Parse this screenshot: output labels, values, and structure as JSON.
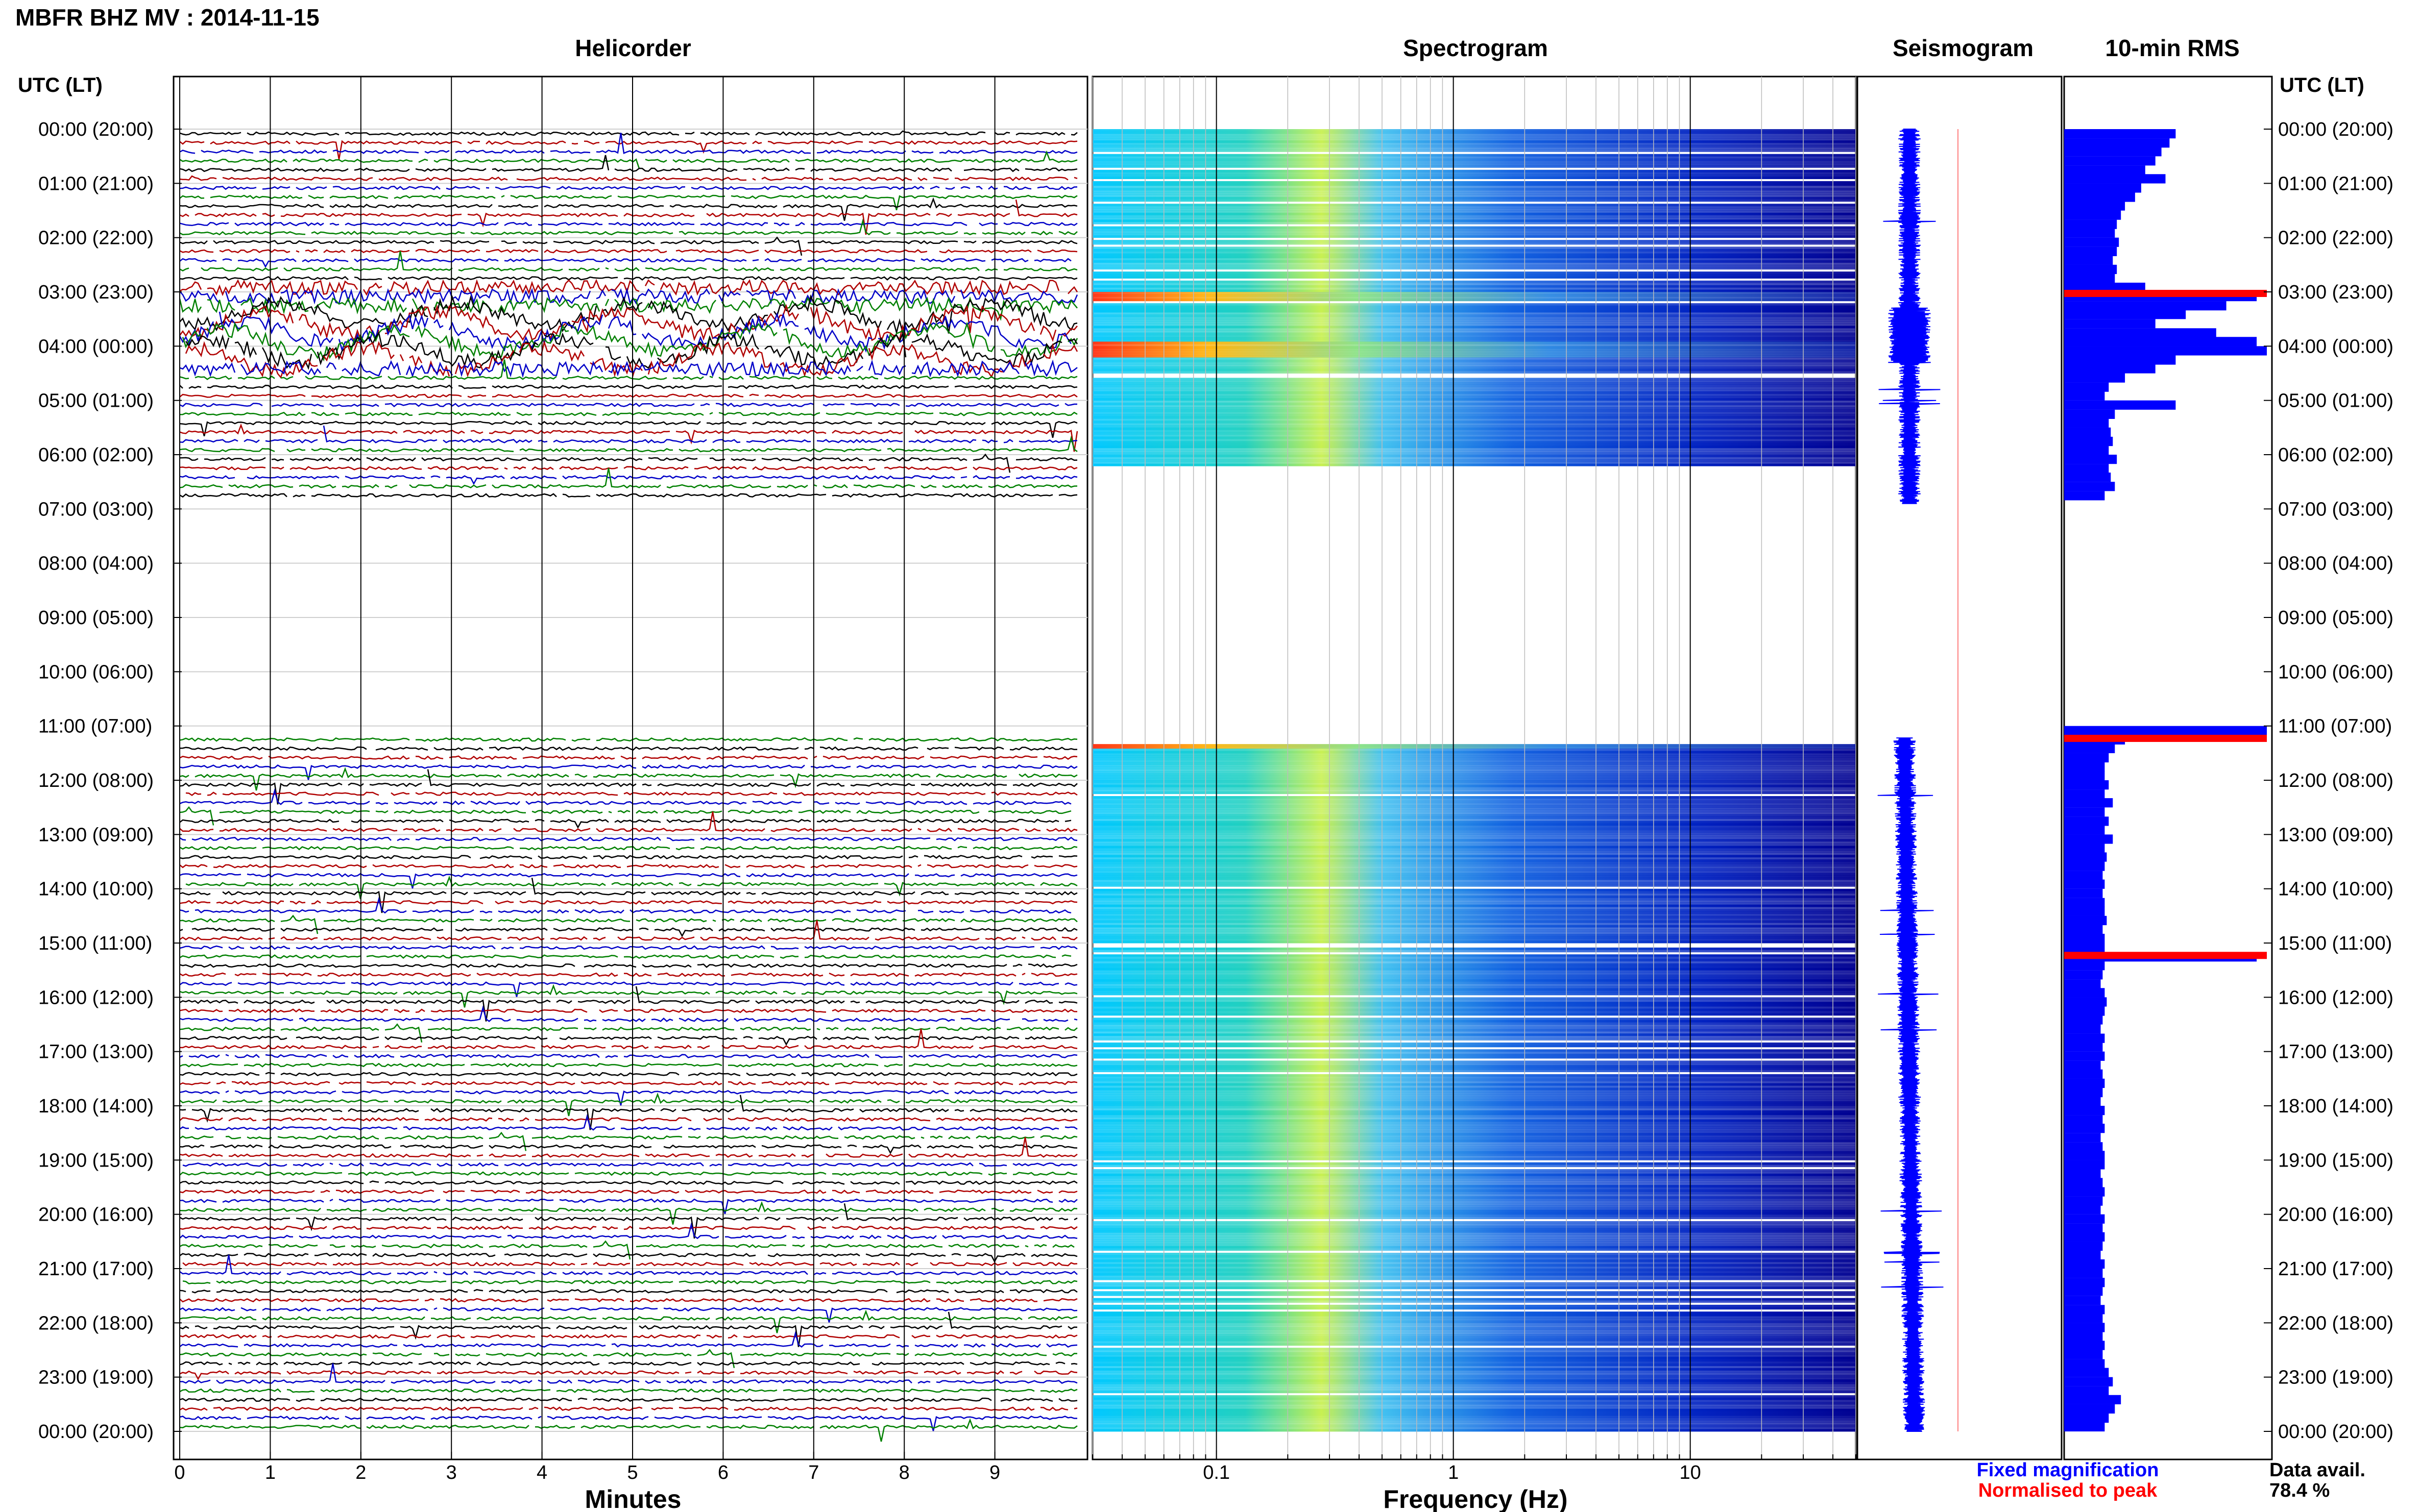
{
  "header": {
    "title": "MBFR BHZ MV : 2014-11-15",
    "helicorder_title": "Helicorder",
    "spectrogram_title": "Spectrogram",
    "seismogram_title": "Seismogram",
    "rms_title": "10-min RMS",
    "left_axis_title": "UTC (LT)",
    "right_axis_title": "UTC (LT)"
  },
  "footer": {
    "helicorder_xlabel": "Minutes",
    "spectrogram_xlabel": "Frequency (Hz)",
    "legend_fixed": "Fixed magnification",
    "legend_normalised": "Normalised to peak",
    "data_avail_label": "Data avail.",
    "data_avail_value": "78.4 %"
  },
  "colors": {
    "trace_black": "#000000",
    "trace_red": "#b00000",
    "trace_blue": "#0000c8",
    "trace_green": "#008000",
    "rms_fixed": "#0000ff",
    "rms_normalised": "#ff0000",
    "spectrogram_low": "#00008f",
    "spectrogram_high": "#ff0000"
  },
  "chart_data": [
    {
      "type": "line",
      "name": "helicorder",
      "xlabel": "Minutes",
      "xlim": [
        0,
        10
      ],
      "x_ticks": [
        "0",
        "1",
        "2",
        "3",
        "4",
        "5",
        "6",
        "7",
        "8",
        "9"
      ],
      "y_ticks": [
        "00:00 (20:00)",
        "01:00 (21:00)",
        "02:00 (22:00)",
        "03:00 (23:00)",
        "04:00 (00:00)",
        "05:00 (01:00)",
        "06:00 (02:00)",
        "07:00 (03:00)",
        "08:00 (04:00)",
        "09:00 (05:00)",
        "10:00 (06:00)",
        "11:00 (07:00)",
        "12:00 (08:00)",
        "13:00 (09:00)",
        "14:00 (10:00)",
        "15:00 (11:00)",
        "16:00 (12:00)",
        "17:00 (13:00)",
        "18:00 (14:00)",
        "19:00 (15:00)",
        "20:00 (16:00)",
        "21:00 (17:00)",
        "22:00 (18:00)",
        "23:00 (19:00)",
        "00:00 (20:00)"
      ],
      "rows_per_hour": 6,
      "data_gaps_hours": [
        [
          6.8,
          11.0
        ]
      ],
      "trace_colors_cycle": [
        "black",
        "red",
        "blue",
        "green"
      ]
    },
    {
      "type": "heatmap",
      "name": "spectrogram",
      "xlabel": "Frequency (Hz)",
      "x_scale": "log",
      "xlim": [
        0.03,
        50
      ],
      "x_ticks": [
        "0.1",
        "1",
        "10"
      ],
      "data_hours": [
        [
          0,
          6.2
        ],
        [
          11.3,
          24
        ]
      ],
      "energy_peak_frequency_hz": 0.25
    },
    {
      "type": "line",
      "name": "seismogram",
      "data_hours": [
        [
          0,
          6.9
        ],
        [
          11.2,
          24
        ]
      ]
    },
    {
      "type": "bar",
      "name": "10-min RMS",
      "orientation": "horizontal",
      "series": [
        {
          "name": "Fixed magnification",
          "color": "#0000ff"
        },
        {
          "name": "Normalised to peak",
          "color": "#ff0000"
        }
      ],
      "rms_profile": [
        [
          0.0,
          0.55
        ],
        [
          0.17,
          0.52
        ],
        [
          0.33,
          0.48
        ],
        [
          0.5,
          0.45
        ],
        [
          0.67,
          0.4
        ],
        [
          0.83,
          0.5
        ],
        [
          1.0,
          0.38
        ],
        [
          1.17,
          0.35
        ],
        [
          1.33,
          0.3
        ],
        [
          1.5,
          0.28
        ],
        [
          1.67,
          0.26
        ],
        [
          1.83,
          0.25
        ],
        [
          2.0,
          0.27
        ],
        [
          2.17,
          0.26
        ],
        [
          2.33,
          0.24
        ],
        [
          2.5,
          0.26
        ],
        [
          2.67,
          0.25
        ],
        [
          2.83,
          0.4
        ],
        [
          3.0,
          0.95
        ],
        [
          3.17,
          0.8
        ],
        [
          3.33,
          0.6
        ],
        [
          3.5,
          0.45
        ],
        [
          3.67,
          0.75
        ],
        [
          3.83,
          0.95
        ],
        [
          4.0,
          1.0
        ],
        [
          4.17,
          0.55
        ],
        [
          4.33,
          0.45
        ],
        [
          4.5,
          0.3
        ],
        [
          4.67,
          0.22
        ],
        [
          4.83,
          0.2
        ],
        [
          5.0,
          0.55
        ],
        [
          5.17,
          0.25
        ],
        [
          5.33,
          0.22
        ],
        [
          5.5,
          0.23
        ],
        [
          5.67,
          0.24
        ],
        [
          5.83,
          0.22
        ],
        [
          6.0,
          0.26
        ],
        [
          6.17,
          0.22
        ],
        [
          6.33,
          0.23
        ],
        [
          6.5,
          0.25
        ],
        [
          6.67,
          0.2
        ],
        [
          11.0,
          1.0
        ],
        [
          11.17,
          0.3
        ],
        [
          11.33,
          0.25
        ],
        [
          11.5,
          0.22
        ],
        [
          11.67,
          0.2
        ],
        [
          11.83,
          0.2
        ],
        [
          12.0,
          0.22
        ],
        [
          12.17,
          0.2
        ],
        [
          12.33,
          0.24
        ],
        [
          12.5,
          0.2
        ],
        [
          12.67,
          0.22
        ],
        [
          12.83,
          0.2
        ],
        [
          13.0,
          0.24
        ],
        [
          13.17,
          0.2
        ],
        [
          13.33,
          0.21
        ],
        [
          13.5,
          0.2
        ],
        [
          13.67,
          0.19
        ],
        [
          13.83,
          0.2
        ],
        [
          14.0,
          0.19
        ],
        [
          14.17,
          0.2
        ],
        [
          14.33,
          0.2
        ],
        [
          14.5,
          0.21
        ],
        [
          14.67,
          0.19
        ],
        [
          14.83,
          0.2
        ],
        [
          15.0,
          0.2
        ],
        [
          15.17,
          0.95
        ],
        [
          15.33,
          0.2
        ],
        [
          15.5,
          0.19
        ],
        [
          15.67,
          0.18
        ],
        [
          15.83,
          0.2
        ],
        [
          16.0,
          0.21
        ],
        [
          16.17,
          0.2
        ],
        [
          16.33,
          0.19
        ],
        [
          16.5,
          0.18
        ],
        [
          16.67,
          0.2
        ],
        [
          16.83,
          0.19
        ],
        [
          17.0,
          0.2
        ],
        [
          17.17,
          0.18
        ],
        [
          17.33,
          0.19
        ],
        [
          17.5,
          0.2
        ],
        [
          17.67,
          0.19
        ],
        [
          17.83,
          0.18
        ],
        [
          18.0,
          0.2
        ],
        [
          18.17,
          0.19
        ],
        [
          18.33,
          0.2
        ],
        [
          18.5,
          0.18
        ],
        [
          18.67,
          0.19
        ],
        [
          18.83,
          0.2
        ],
        [
          19.0,
          0.2
        ],
        [
          19.17,
          0.18
        ],
        [
          19.33,
          0.19
        ],
        [
          19.5,
          0.2
        ],
        [
          19.67,
          0.19
        ],
        [
          19.83,
          0.18
        ],
        [
          20.0,
          0.2
        ],
        [
          20.17,
          0.19
        ],
        [
          20.33,
          0.2
        ],
        [
          20.5,
          0.19
        ],
        [
          20.67,
          0.18
        ],
        [
          20.83,
          0.2
        ],
        [
          21.0,
          0.19
        ],
        [
          21.17,
          0.2
        ],
        [
          21.33,
          0.19
        ],
        [
          21.5,
          0.18
        ],
        [
          21.67,
          0.2
        ],
        [
          21.83,
          0.19
        ],
        [
          22.0,
          0.2
        ],
        [
          22.17,
          0.19
        ],
        [
          22.33,
          0.2
        ],
        [
          22.5,
          0.19
        ],
        [
          22.67,
          0.2
        ],
        [
          22.83,
          0.22
        ],
        [
          23.0,
          0.24
        ],
        [
          23.17,
          0.22
        ],
        [
          23.33,
          0.28
        ],
        [
          23.5,
          0.25
        ],
        [
          23.67,
          0.22
        ],
        [
          23.83,
          0.2
        ]
      ],
      "normalised_peak_hours": [
        3.0,
        11.2,
        15.2
      ]
    }
  ]
}
